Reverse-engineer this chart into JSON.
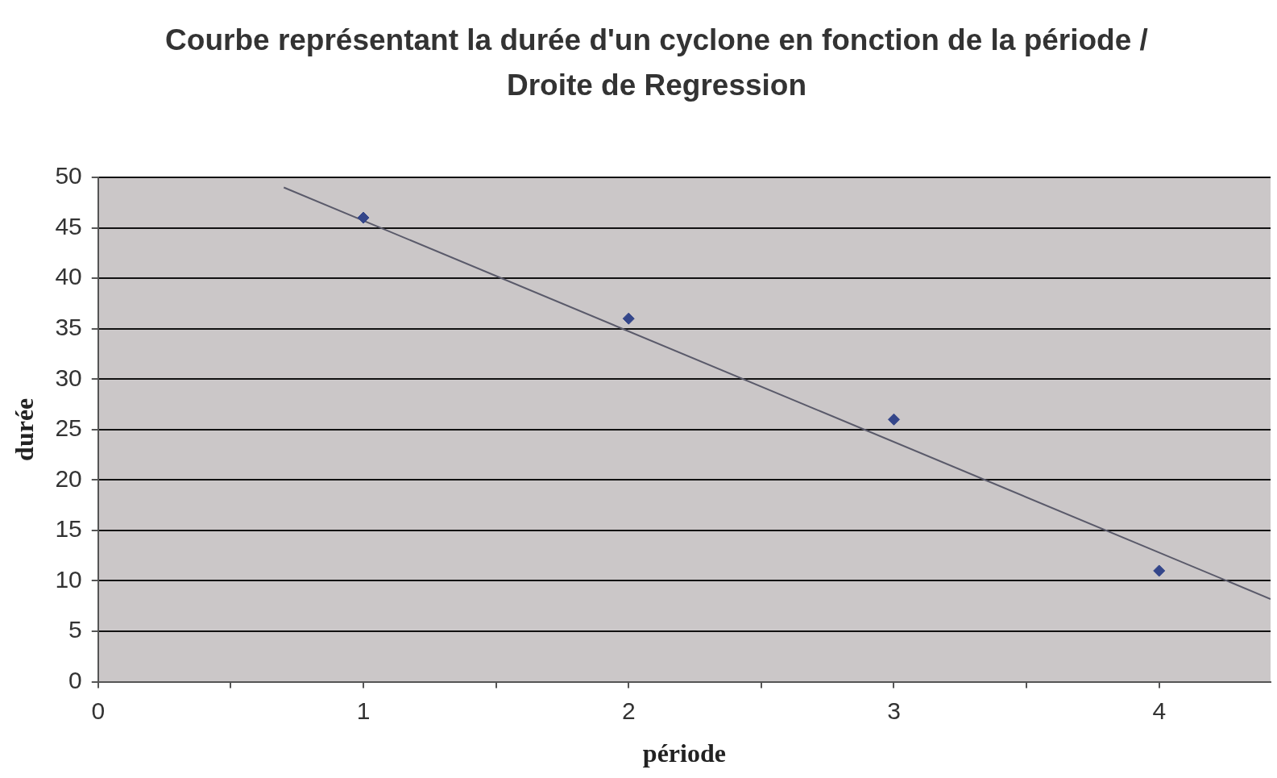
{
  "chart_data": {
    "type": "scatter",
    "title": "Courbe représentant la durée d'un cyclone en fonction de la période / Droite de Regression",
    "xlabel": "période",
    "ylabel": "durée",
    "xlim": [
      0,
      4.42
    ],
    "xticks": [
      0,
      {
        "value": 0.5,
        "label": null
      },
      1,
      {
        "value": 1.5,
        "label": null
      },
      2,
      {
        "value": 2.5,
        "label": null
      },
      3,
      {
        "value": 3.5,
        "label": null
      },
      4
    ],
    "ylim": [
      0,
      50
    ],
    "yticks": [
      0,
      5,
      10,
      15,
      20,
      25,
      30,
      35,
      40,
      45,
      50
    ],
    "grid": "y",
    "legend": false,
    "marker": "diamond",
    "series": [
      {
        "type": "scatter",
        "color": "#34468a",
        "x": [
          1,
          2,
          3,
          4
        ],
        "values": [
          46,
          36,
          26,
          11
        ]
      },
      {
        "type": "line",
        "color": "#5a5a6a",
        "x": [
          0.7,
          4.42
        ],
        "values": [
          49,
          8.2
        ],
        "marker": "none",
        "line_style": "solid"
      }
    ]
  }
}
